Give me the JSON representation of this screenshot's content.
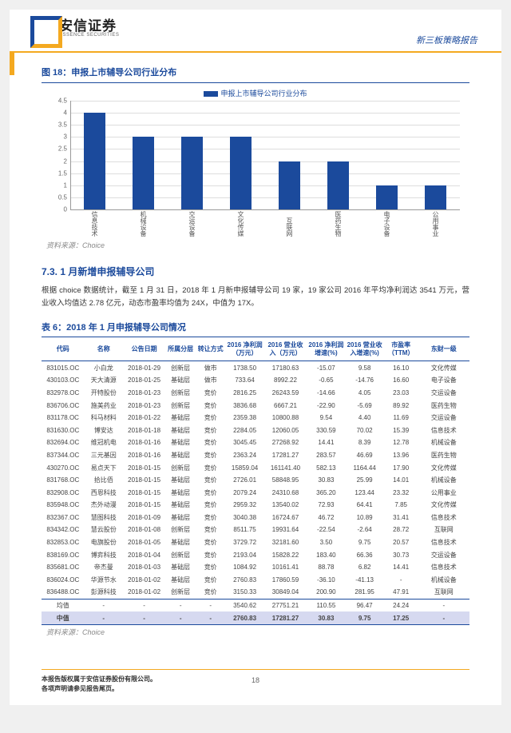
{
  "header": {
    "logo_cn": "安信证券",
    "logo_en": "ESSENCE SECURITIES",
    "right_label": "新三板策略报告"
  },
  "figure": {
    "title": "图 18：申报上市辅导公司行业分布",
    "legend": "申报上市辅导公司行业分布",
    "source": "资料来源：Choice",
    "ylim": [
      0,
      4.5
    ],
    "ytick_step": 0.5,
    "categories": [
      "信息技术",
      "机械设备",
      "交运设备",
      "文化传媒",
      "互联网",
      "医药生物",
      "电子设备",
      "公用事业"
    ],
    "values": [
      4,
      3,
      3,
      3,
      2,
      2,
      1,
      1
    ],
    "bar_color": "#1b4a9c",
    "bar_width": 0.45,
    "grid_color": "#dddddd",
    "background_color": "#ffffff"
  },
  "section": {
    "title": "7.3. 1 月新增申报辅导公司",
    "body": "根据 choice 数据统计，截至 1 月 31 日，2018 年 1 月新申报辅导公司 19 家，19 家公司 2016 年平均净利润达 3541 万元，营业收入均值达 2.78 亿元，动态市盈率均值为 24X，中值为 17X。"
  },
  "table": {
    "title": "表 6：2018 年 1 月申报辅导公司情况",
    "source": "资料来源：Choice",
    "columns": [
      "代码",
      "名称",
      "公告日期",
      "所属分层",
      "转让方式",
      "2016 净利润（万元）",
      "2016 营业收入（万元）",
      "2016 净利润增速(%)",
      "2016 营业收入增速(%)",
      "市盈率（TTM）",
      "东财一级"
    ],
    "col_widths": [
      "10%",
      "9%",
      "10%",
      "7%",
      "7%",
      "9%",
      "10%",
      "9%",
      "9%",
      "8%",
      "12%"
    ],
    "rows": [
      [
        "831015.OC",
        "小白龙",
        "2018-01-29",
        "创新层",
        "做市",
        "1738.50",
        "17180.63",
        "-15.07",
        "9.58",
        "16.10",
        "文化传媒"
      ],
      [
        "430103.OC",
        "天大清源",
        "2018-01-25",
        "基础层",
        "做市",
        "733.64",
        "8992.22",
        "-0.65",
        "-14.76",
        "16.60",
        "电子设备"
      ],
      [
        "832978.OC",
        "开特股份",
        "2018-01-23",
        "创新层",
        "竞价",
        "2816.25",
        "26243.59",
        "-14.66",
        "4.05",
        "23.03",
        "交运设备"
      ],
      [
        "836706.OC",
        "施美药业",
        "2018-01-23",
        "创新层",
        "竞价",
        "3836.68",
        "6667.21",
        "-22.90",
        "-5.69",
        "89.92",
        "医药生物"
      ],
      [
        "831178.OC",
        "科马材料",
        "2018-01-22",
        "基础层",
        "竞价",
        "2359.38",
        "10800.88",
        "9.54",
        "4.40",
        "11.69",
        "交运设备"
      ],
      [
        "831630.OC",
        "博安达",
        "2018-01-18",
        "基础层",
        "竞价",
        "2284.05",
        "12060.05",
        "330.59",
        "70.02",
        "15.39",
        "信息技术"
      ],
      [
        "832694.OC",
        "维冠机电",
        "2018-01-16",
        "基础层",
        "竞价",
        "3045.45",
        "27268.92",
        "14.41",
        "8.39",
        "12.78",
        "机械设备"
      ],
      [
        "837344.OC",
        "三元基因",
        "2018-01-16",
        "基础层",
        "竞价",
        "2363.24",
        "17281.27",
        "283.57",
        "46.69",
        "13.96",
        "医药生物"
      ],
      [
        "430270.OC",
        "易点天下",
        "2018-01-15",
        "创新层",
        "竞价",
        "15859.04",
        "161141.40",
        "582.13",
        "1164.44",
        "17.90",
        "文化传媒"
      ],
      [
        "831768.OC",
        "拾比佰",
        "2018-01-15",
        "基础层",
        "竞价",
        "2726.01",
        "58848.95",
        "30.83",
        "25.99",
        "14.01",
        "机械设备"
      ],
      [
        "832908.OC",
        "西恩科技",
        "2018-01-15",
        "基础层",
        "竞价",
        "2079.24",
        "24310.68",
        "365.20",
        "123.44",
        "23.32",
        "公用事业"
      ],
      [
        "835948.OC",
        "杰外动漫",
        "2018-01-15",
        "基础层",
        "竞价",
        "2959.32",
        "13540.02",
        "72.93",
        "64.41",
        "7.85",
        "文化传媒"
      ],
      [
        "832367.OC",
        "慧图科技",
        "2018-01-09",
        "基础层",
        "竞价",
        "3040.38",
        "16724.67",
        "46.72",
        "10.89",
        "31.41",
        "信息技术"
      ],
      [
        "834342.OC",
        "慧云股份",
        "2018-01-08",
        "创新层",
        "竞价",
        "8511.75",
        "19931.64",
        "-22.54",
        "-2.64",
        "28.72",
        "互联网"
      ],
      [
        "832853.OC",
        "电旗股份",
        "2018-01-05",
        "基础层",
        "竞价",
        "3729.72",
        "32181.60",
        "3.50",
        "9.75",
        "20.57",
        "信息技术"
      ],
      [
        "838169.OC",
        "博弈科技",
        "2018-01-04",
        "创新层",
        "竞价",
        "2193.04",
        "15828.22",
        "183.40",
        "66.36",
        "30.73",
        "交运设备"
      ],
      [
        "835681.OC",
        "帝杰曼",
        "2018-01-03",
        "基础层",
        "竞价",
        "1084.92",
        "10161.41",
        "88.78",
        "6.82",
        "14.41",
        "信息技术"
      ],
      [
        "836024.OC",
        "华源节水",
        "2018-01-02",
        "基础层",
        "竞价",
        "2760.83",
        "17860.59",
        "-36.10",
        "-41.13",
        "-",
        "机械设备"
      ],
      [
        "836488.OC",
        "彭源科技",
        "2018-01-02",
        "创新层",
        "竞价",
        "3150.33",
        "30849.04",
        "200.90",
        "281.95",
        "47.91",
        "互联网"
      ]
    ],
    "mean_row": [
      "均值",
      "-",
      "-",
      "-",
      "-",
      "3540.62",
      "27751.21",
      "110.55",
      "96.47",
      "24.24",
      "-"
    ],
    "median_row": [
      "中值",
      "-",
      "-",
      "-",
      "-",
      "2760.83",
      "17281.27",
      "30.83",
      "9.75",
      "17.25",
      "-"
    ]
  },
  "footer": {
    "line1": "本报告版权属于安信证券股份有限公司。",
    "line2": "各项声明请参见报告尾页。",
    "page_num": "18"
  }
}
